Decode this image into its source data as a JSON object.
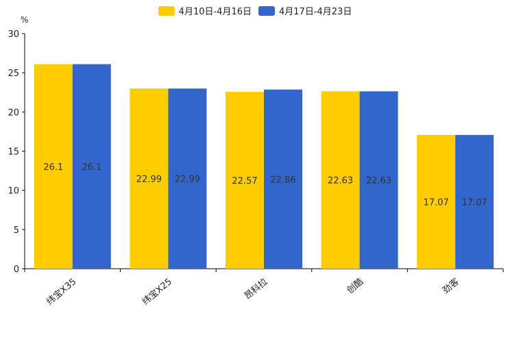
{
  "chart_data": {
    "type": "bar",
    "title": "",
    "xlabel": "",
    "ylabel": "%",
    "ylim": [
      0,
      30
    ],
    "yticks": [
      0,
      5,
      10,
      15,
      20,
      25,
      30
    ],
    "categories": [
      "纬宝X35",
      "纬宝X25",
      "昂科拉",
      "创酷",
      "劲客"
    ],
    "series": [
      {
        "name": "4月10日-4月16日",
        "color": "#FFCC00",
        "values": [
          26.1,
          22.99,
          22.57,
          22.63,
          17.07
        ]
      },
      {
        "name": "4月17日-4月23日",
        "color": "#3366CC",
        "values": [
          26.1,
          22.99,
          22.86,
          22.63,
          17.07
        ]
      }
    ],
    "legend_position": "top-center",
    "data_labels": true
  }
}
